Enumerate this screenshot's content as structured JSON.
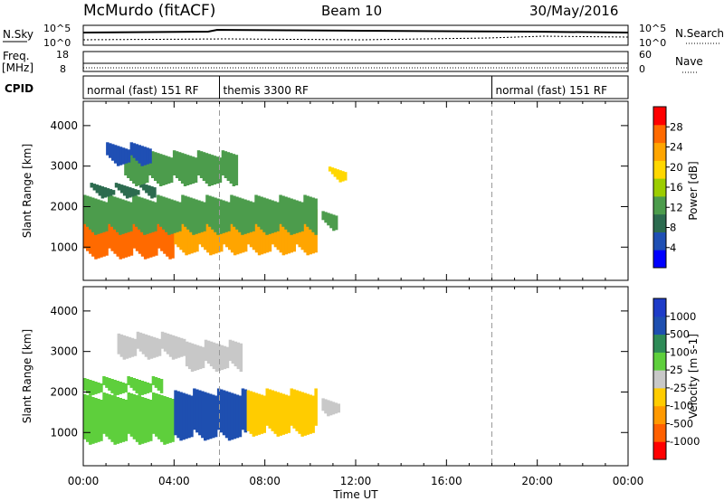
{
  "header": {
    "station": "McMurdo (fitACF)",
    "beam": "Beam 10",
    "date": "30/May/2016"
  },
  "top_panels": {
    "nsky_label": "N.Sky",
    "nsky_ticks": [
      "10^5",
      "10^0"
    ],
    "nsearch_label": "N.Search",
    "nsearch_ticks": [
      "10^5",
      "10^0"
    ],
    "freq_label": "Freq.",
    "freq_unit": "[MHz]",
    "freq_ticks": [
      "18",
      "8"
    ],
    "nave_label": "Nave",
    "nave_ticks": [
      "60",
      "0"
    ],
    "cpid_label": "CPID",
    "cpid_segments": [
      {
        "label": "normal (fast) 151 RF",
        "start_hr": 0,
        "end_hr": 6
      },
      {
        "label": "themis 3300 RF",
        "start_hr": 6,
        "end_hr": 18
      },
      {
        "label": "normal (fast) 151 RF",
        "start_hr": 18,
        "end_hr": 24
      }
    ]
  },
  "x_axis": {
    "label": "Time UT",
    "ticks": [
      "00:00",
      "04:00",
      "08:00",
      "12:00",
      "16:00",
      "20:00",
      "00:00"
    ]
  },
  "colors": {
    "power": [
      "#0000ff",
      "#1f4fb4",
      "#2c6b4f",
      "#4c9c4c",
      "#9ccd00",
      "#ffd700",
      "#ffa500",
      "#ff6a00",
      "#ff0000"
    ],
    "velocity": [
      "#ff0000",
      "#ff6000",
      "#ff9900",
      "#ffcc00",
      "#c8c8c8",
      "#5ecf3c",
      "#2e8b57",
      "#1e4fb0",
      "#1e3cc8"
    ]
  },
  "chart_data": [
    {
      "type": "heatmap",
      "title": "",
      "xlabel": "Time UT",
      "ylabel": "Slant Range [km]",
      "xlim": [
        0,
        24
      ],
      "ylim": [
        180,
        4600
      ],
      "yticks": [
        "1000",
        "2000",
        "3000",
        "4000"
      ],
      "colorbar": {
        "label": "Power [dB]",
        "ticks": [
          "4",
          "8",
          "12",
          "16",
          "20",
          "24",
          "28"
        ],
        "range": [
          0,
          32
        ]
      },
      "regions": [
        {
          "t0": 0.0,
          "t1": 4.0,
          "r0": 700,
          "r1": 1800,
          "value": 28
        },
        {
          "t0": 4.0,
          "t1": 10.3,
          "r0": 800,
          "r1": 2000,
          "value": 24
        },
        {
          "t0": 0.0,
          "t1": 10.3,
          "r0": 1300,
          "r1": 2200,
          "value": 14
        },
        {
          "t0": 0.3,
          "t1": 3.2,
          "r0": 2200,
          "r1": 2500,
          "value": 8
        },
        {
          "t0": 1.8,
          "t1": 6.8,
          "r0": 2500,
          "r1": 3300,
          "value": 12
        },
        {
          "t0": 1.0,
          "t1": 3.0,
          "r0": 3000,
          "r1": 3500,
          "value": 6
        },
        {
          "t0": 10.5,
          "t1": 11.2,
          "r0": 1400,
          "r1": 1800,
          "value": 14
        },
        {
          "t0": 10.8,
          "t1": 11.6,
          "r0": 2600,
          "r1": 2900,
          "value": 18
        }
      ]
    },
    {
      "type": "heatmap",
      "title": "",
      "xlabel": "Time UT",
      "ylabel": "Slant Range [km]",
      "xlim": [
        0,
        24
      ],
      "ylim": [
        180,
        4600
      ],
      "yticks": [
        "1000",
        "2000",
        "3000",
        "4000"
      ],
      "colorbar": {
        "label": "Velocity [m s-1]",
        "ticks": [
          "-1000",
          "-500",
          "-100",
          "-25",
          "25",
          "100",
          "500",
          "1000"
        ],
        "range": [
          -1200,
          1200
        ]
      },
      "regions": [
        {
          "t0": 0.0,
          "t1": 4.0,
          "r0": 700,
          "r1": 1900,
          "value": 150
        },
        {
          "t0": 4.0,
          "t1": 7.2,
          "r0": 800,
          "r1": 2000,
          "value": 700
        },
        {
          "t0": 7.2,
          "t1": 10.3,
          "r0": 900,
          "r1": 2000,
          "value": -150
        },
        {
          "t0": 0.0,
          "t1": 3.5,
          "r0": 1900,
          "r1": 2300,
          "value": 300
        },
        {
          "t0": 1.5,
          "t1": 4.5,
          "r0": 2800,
          "r1": 3400,
          "value": 10
        },
        {
          "t0": 4.5,
          "t1": 7.0,
          "r0": 2500,
          "r1": 3200,
          "value": 60
        },
        {
          "t0": 10.5,
          "t1": 11.3,
          "r0": 1400,
          "r1": 1800,
          "value": 20
        }
      ]
    }
  ]
}
